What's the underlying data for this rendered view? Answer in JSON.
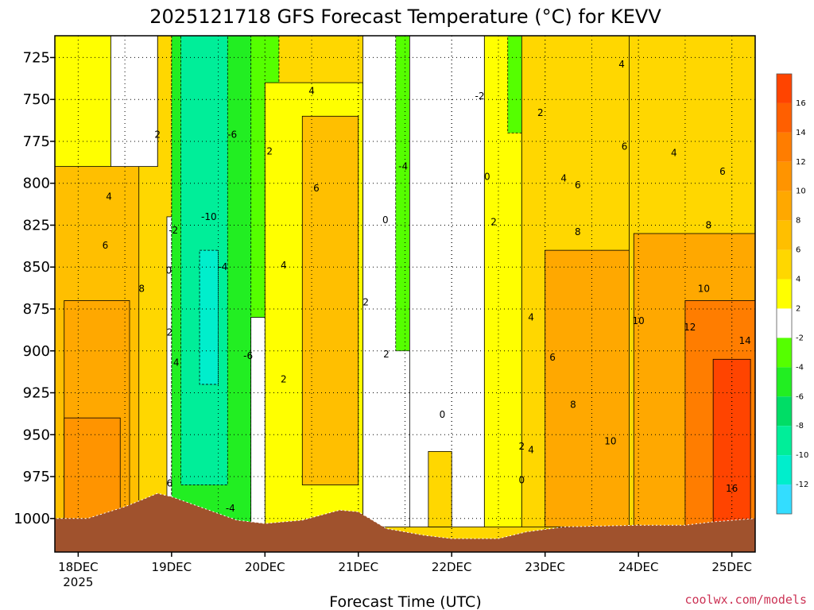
{
  "chart_data": {
    "type": "heatmap",
    "title": "2025121718 GFS Forecast Temperature (°C) for KEVV",
    "xlabel": "Forecast Time (UTC)",
    "ylabel": "",
    "x_ticks": [
      {
        "label": "18DEC",
        "sub": "2025",
        "day": 18
      },
      {
        "label": "19DEC",
        "sub": "",
        "day": 19
      },
      {
        "label": "20DEC",
        "sub": "",
        "day": 20
      },
      {
        "label": "21DEC",
        "sub": "",
        "day": 21
      },
      {
        "label": "22DEC",
        "sub": "",
        "day": 22
      },
      {
        "label": "23DEC",
        "sub": "",
        "day": 23
      },
      {
        "label": "24DEC",
        "sub": "",
        "day": 24
      },
      {
        "label": "25DEC",
        "sub": "",
        "day": 25
      }
    ],
    "xlim": [
      "2025-12-17 18Z",
      "2025-12-25 06Z"
    ],
    "y_ticks": [
      725,
      750,
      775,
      800,
      825,
      850,
      875,
      900,
      925,
      950,
      975,
      1000
    ],
    "ylim": [
      1020,
      712
    ],
    "colorbar": {
      "labels": [
        16,
        14,
        12,
        10,
        8,
        6,
        4,
        2,
        -2,
        -4,
        -6,
        -8,
        -10,
        -12
      ],
      "bins": [
        {
          "min": 16,
          "max": 18,
          "color": "#ff4400"
        },
        {
          "min": 14,
          "max": 16,
          "color": "#ff5f00"
        },
        {
          "min": 12,
          "max": 14,
          "color": "#ff7d00"
        },
        {
          "min": 10,
          "max": 12,
          "color": "#ff9400"
        },
        {
          "min": 8,
          "max": 10,
          "color": "#ffa800"
        },
        {
          "min": 6,
          "max": 8,
          "color": "#ffbf00"
        },
        {
          "min": 4,
          "max": 6,
          "color": "#ffd700"
        },
        {
          "min": 2,
          "max": 4,
          "color": "#ffff00"
        },
        {
          "min": -2,
          "max": 2,
          "color": "#ffffff"
        },
        {
          "min": -4,
          "max": -2,
          "color": "#55ff00"
        },
        {
          "min": -6,
          "max": -4,
          "color": "#22ee22"
        },
        {
          "min": -8,
          "max": -6,
          "color": "#00dd66"
        },
        {
          "min": -10,
          "max": -8,
          "color": "#00ee99"
        },
        {
          "min": -12,
          "max": -10,
          "color": "#00eecc"
        },
        {
          "min": -14,
          "max": -12,
          "color": "#33ddff"
        }
      ]
    },
    "bands": [
      {
        "day_start": 17.75,
        "day_end": 18.65,
        "p_top": 712,
        "p_bottom": 1005,
        "value": 6
      },
      {
        "day_start": 17.75,
        "day_end": 18.85,
        "p_top": 712,
        "p_bottom": 790,
        "value": 3
      },
      {
        "day_start": 17.85,
        "day_end": 18.55,
        "p_top": 870,
        "p_bottom": 1005,
        "value": 9
      },
      {
        "day_start": 17.85,
        "day_end": 18.45,
        "p_top": 940,
        "p_bottom": 1005,
        "value": 11
      },
      {
        "day_start": 18.35,
        "day_end": 18.85,
        "p_top": 712,
        "p_bottom": 790,
        "value": 0
      },
      {
        "day_start": 18.95,
        "day_end": 19.15,
        "p_top": 820,
        "p_bottom": 1000,
        "value": 0
      },
      {
        "day_start": 19.0,
        "day_end": 19.9,
        "p_top": 712,
        "p_bottom": 1005,
        "value": -5
      },
      {
        "day_start": 19.1,
        "day_end": 19.6,
        "p_top": 712,
        "p_bottom": 980,
        "value": -9
      },
      {
        "day_start": 19.3,
        "day_end": 19.5,
        "p_top": 840,
        "p_bottom": 920,
        "value": -11
      },
      {
        "day_start": 19.85,
        "day_end": 20.15,
        "p_top": 712,
        "p_bottom": 1005,
        "value": -3
      },
      {
        "day_start": 19.85,
        "day_end": 20.15,
        "p_top": 880,
        "p_bottom": 1005,
        "value": 0
      },
      {
        "day_start": 20.0,
        "day_end": 21.05,
        "p_top": 740,
        "p_bottom": 1005,
        "value": 3
      },
      {
        "day_start": 20.4,
        "day_end": 21.0,
        "p_top": 760,
        "p_bottom": 980,
        "value": 7
      },
      {
        "day_start": 21.05,
        "day_end": 21.55,
        "p_top": 712,
        "p_bottom": 1005,
        "value": 0
      },
      {
        "day_start": 21.4,
        "day_end": 21.95,
        "p_top": 712,
        "p_bottom": 900,
        "value": -3
      },
      {
        "day_start": 21.6,
        "day_end": 21.85,
        "p_top": 712,
        "p_bottom": 820,
        "value": -5
      },
      {
        "day_start": 21.55,
        "day_end": 22.35,
        "p_top": 712,
        "p_bottom": 1005,
        "value": 0
      },
      {
        "day_start": 21.75,
        "day_end": 22.0,
        "p_top": 960,
        "p_bottom": 1005,
        "value": 4
      },
      {
        "day_start": 22.35,
        "day_end": 22.75,
        "p_top": 712,
        "p_bottom": 1005,
        "value": 3
      },
      {
        "day_start": 22.6,
        "day_end": 22.9,
        "p_top": 712,
        "p_bottom": 770,
        "value": -3
      },
      {
        "day_start": 22.75,
        "day_end": 23.9,
        "p_top": 712,
        "p_bottom": 1005,
        "value": 5
      },
      {
        "day_start": 23.0,
        "day_end": 24.0,
        "p_top": 840,
        "p_bottom": 1005,
        "value": 9
      },
      {
        "day_start": 23.9,
        "day_end": 25.25,
        "p_top": 712,
        "p_bottom": 1005,
        "value": 5
      },
      {
        "day_start": 23.95,
        "day_end": 25.25,
        "p_top": 830,
        "p_bottom": 1005,
        "value": 9
      },
      {
        "day_start": 24.5,
        "day_end": 25.25,
        "p_top": 870,
        "p_bottom": 1005,
        "value": 13
      },
      {
        "day_start": 24.8,
        "day_end": 25.2,
        "p_top": 905,
        "p_bottom": 1005,
        "value": 16
      }
    ],
    "contour_labels": [
      {
        "day": 18.33,
        "p": 808,
        "text": "4"
      },
      {
        "day": 18.29,
        "p": 837,
        "text": "6"
      },
      {
        "day": 18.68,
        "p": 863,
        "text": "8"
      },
      {
        "day": 18.85,
        "p": 771,
        "text": "2"
      },
      {
        "day": 18.97,
        "p": 852,
        "text": "0"
      },
      {
        "day": 18.98,
        "p": 889,
        "text": "2"
      },
      {
        "day": 19.02,
        "p": 828,
        "text": "-2"
      },
      {
        "day": 19.4,
        "p": 820,
        "text": "-10"
      },
      {
        "day": 19.55,
        "p": 850,
        "text": "-4"
      },
      {
        "day": 19.65,
        "p": 771,
        "text": "-6"
      },
      {
        "day": 19.82,
        "p": 903,
        "text": "-6"
      },
      {
        "day": 19.05,
        "p": 907,
        "text": "4"
      },
      {
        "day": 18.98,
        "p": 979,
        "text": "6"
      },
      {
        "day": 19.63,
        "p": 994,
        "text": "-4"
      },
      {
        "day": 20.05,
        "p": 781,
        "text": "2"
      },
      {
        "day": 20.2,
        "p": 917,
        "text": "2"
      },
      {
        "day": 20.5,
        "p": 745,
        "text": "4"
      },
      {
        "day": 20.55,
        "p": 803,
        "text": "6"
      },
      {
        "day": 20.2,
        "p": 849,
        "text": "4"
      },
      {
        "day": 21.08,
        "p": 871,
        "text": "2"
      },
      {
        "day": 21.29,
        "p": 822,
        "text": "0"
      },
      {
        "day": 21.3,
        "p": 902,
        "text": "2"
      },
      {
        "day": 21.48,
        "p": 790,
        "text": "-4"
      },
      {
        "day": 21.9,
        "p": 938,
        "text": "0"
      },
      {
        "day": 22.3,
        "p": 748,
        "text": "-2"
      },
      {
        "day": 22.38,
        "p": 796,
        "text": "0"
      },
      {
        "day": 22.45,
        "p": 823,
        "text": "2"
      },
      {
        "day": 22.75,
        "p": 957,
        "text": "2"
      },
      {
        "day": 22.85,
        "p": 959,
        "text": "4"
      },
      {
        "day": 22.75,
        "p": 977,
        "text": "0"
      },
      {
        "day": 22.85,
        "p": 880,
        "text": "4"
      },
      {
        "day": 22.95,
        "p": 758,
        "text": "2"
      },
      {
        "day": 23.2,
        "p": 797,
        "text": "4"
      },
      {
        "day": 23.35,
        "p": 801,
        "text": "6"
      },
      {
        "day": 23.08,
        "p": 904,
        "text": "6"
      },
      {
        "day": 23.35,
        "p": 829,
        "text": "8"
      },
      {
        "day": 23.3,
        "p": 932,
        "text": "8"
      },
      {
        "day": 23.7,
        "p": 954,
        "text": "10"
      },
      {
        "day": 23.82,
        "p": 729,
        "text": "4"
      },
      {
        "day": 23.85,
        "p": 778,
        "text": "6"
      },
      {
        "day": 24.0,
        "p": 882,
        "text": "10"
      },
      {
        "day": 24.38,
        "p": 782,
        "text": "4"
      },
      {
        "day": 24.9,
        "p": 793,
        "text": "6"
      },
      {
        "day": 24.75,
        "p": 825,
        "text": "8"
      },
      {
        "day": 24.7,
        "p": 863,
        "text": "10"
      },
      {
        "day": 24.55,
        "p": 886,
        "text": "12"
      },
      {
        "day": 25.14,
        "p": 894,
        "text": "14"
      },
      {
        "day": 25.0,
        "p": 982,
        "text": "16"
      }
    ],
    "terrain": {
      "color": "#a0522d",
      "surface": [
        {
          "day": 17.75,
          "p": 1000
        },
        {
          "day": 18.1,
          "p": 1000
        },
        {
          "day": 18.5,
          "p": 993
        },
        {
          "day": 18.85,
          "p": 985
        },
        {
          "day": 19.0,
          "p": 987
        },
        {
          "day": 19.3,
          "p": 993
        },
        {
          "day": 19.7,
          "p": 1001
        },
        {
          "day": 20.0,
          "p": 1003
        },
        {
          "day": 20.4,
          "p": 1001
        },
        {
          "day": 20.8,
          "p": 995
        },
        {
          "day": 21.0,
          "p": 996
        },
        {
          "day": 21.3,
          "p": 1006
        },
        {
          "day": 21.7,
          "p": 1010
        },
        {
          "day": 22.0,
          "p": 1012
        },
        {
          "day": 22.5,
          "p": 1012
        },
        {
          "day": 22.8,
          "p": 1008
        },
        {
          "day": 23.2,
          "p": 1005
        },
        {
          "day": 24.0,
          "p": 1004
        },
        {
          "day": 24.5,
          "p": 1004
        },
        {
          "day": 24.8,
          "p": 1002
        },
        {
          "day": 25.25,
          "p": 1000
        }
      ]
    }
  },
  "credit": "coolwx.com/models"
}
